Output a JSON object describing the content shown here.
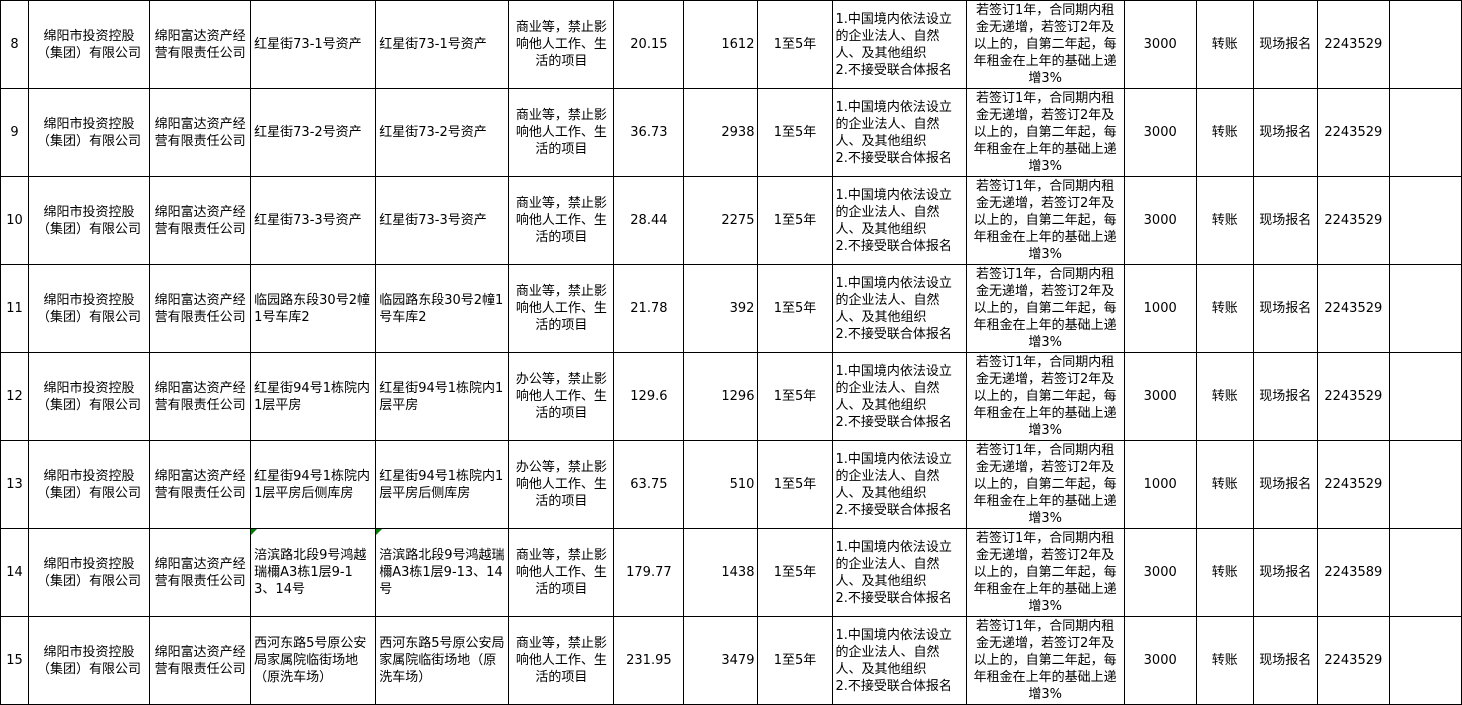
{
  "colors": {
    "border": "#000000",
    "background": "#ffffff",
    "text": "#000000",
    "error_flag_green": "#008000"
  },
  "icons": {
    "error_flag": "excel-green-corner-triangle"
  },
  "table": {
    "column_keys": [
      "num",
      "owner",
      "manager",
      "asset_name",
      "asset_name_2",
      "usage",
      "area",
      "monthly_rent",
      "term",
      "qualification",
      "escalation",
      "deposit",
      "payment",
      "registration",
      "phone",
      "extra"
    ],
    "rows": [
      {
        "num": "8",
        "owner": "绵阳市投资控股（集团）有限公司",
        "manager": "绵阳富达资产经营有限责任公司",
        "asset_name": "红星街73-1号资产",
        "asset_name_2": "红星街73-1号资产",
        "usage": "商业等，禁止影响他人工作、生活的项目",
        "area": "20.15",
        "monthly_rent": "1612",
        "term": "1至5年",
        "qualification": "1.中国境内依法设立的企业法人、自然人、及其他组织\n2.不接受联合体报名",
        "escalation": "若签订1年，合同期内租金无递增，若签订2年及以上的，自第二年起，每年租金在上年的基础上递增3%",
        "deposit": "3000",
        "payment": "转账",
        "registration": "现场报名",
        "phone": "2243529",
        "extra": "",
        "flags": []
      },
      {
        "num": "9",
        "owner": "绵阳市投资控股（集团）有限公司",
        "manager": "绵阳富达资产经营有限责任公司",
        "asset_name": "红星街73-2号资产",
        "asset_name_2": "红星街73-2号资产",
        "usage": "商业等，禁止影响他人工作、生活的项目",
        "area": "36.73",
        "monthly_rent": "2938",
        "term": "1至5年",
        "qualification": "1.中国境内依法设立的企业法人、自然人、及其他组织\n2.不接受联合体报名",
        "escalation": "若签订1年，合同期内租金无递增，若签订2年及以上的，自第二年起，每年租金在上年的基础上递增3%",
        "deposit": "3000",
        "payment": "转账",
        "registration": "现场报名",
        "phone": "2243529",
        "extra": "",
        "flags": []
      },
      {
        "num": "10",
        "owner": "绵阳市投资控股（集团）有限公司",
        "manager": "绵阳富达资产经营有限责任公司",
        "asset_name": "红星街73-3号资产",
        "asset_name_2": "红星街73-3号资产",
        "usage": "商业等，禁止影响他人工作、生活的项目",
        "area": "28.44",
        "monthly_rent": "2275",
        "term": "1至5年",
        "qualification": "1.中国境内依法设立的企业法人、自然人、及其他组织\n2.不接受联合体报名",
        "escalation": "若签订1年，合同期内租金无递增，若签订2年及以上的，自第二年起，每年租金在上年的基础上递增3%",
        "deposit": "3000",
        "payment": "转账",
        "registration": "现场报名",
        "phone": "2243529",
        "extra": "",
        "flags": []
      },
      {
        "num": "11",
        "owner": "绵阳市投资控股（集团）有限公司",
        "manager": "绵阳富达资产经营有限责任公司",
        "asset_name": "临园路东段30号2幢1号车库2",
        "asset_name_2": "临园路东段30号2幢1号车库2",
        "usage": "商业等，禁止影响他人工作、生活的项目",
        "area": "21.78",
        "monthly_rent": "392",
        "term": "1至5年",
        "qualification": "1.中国境内依法设立的企业法人、自然人、及其他组织\n2.不接受联合体报名",
        "escalation": "若签订1年，合同期内租金无递增，若签订2年及以上的，自第二年起，每年租金在上年的基础上递增3%",
        "deposit": "1000",
        "payment": "转账",
        "registration": "现场报名",
        "phone": "2243529",
        "extra": "",
        "flags": []
      },
      {
        "num": "12",
        "owner": "绵阳市投资控股（集团）有限公司",
        "manager": "绵阳富达资产经营有限责任公司",
        "asset_name": "红星街94号1栋院内1层平房",
        "asset_name_2": "红星街94号1栋院内1层平房",
        "usage": "办公等，禁止影响他人工作、生活的项目",
        "area": "129.6",
        "monthly_rent": "1296",
        "term": "1至5年",
        "qualification": "1.中国境内依法设立的企业法人、自然人、及其他组织\n2.不接受联合体报名",
        "escalation": "若签订1年，合同期内租金无递增，若签订2年及以上的，自第二年起，每年租金在上年的基础上递增3%",
        "deposit": "3000",
        "payment": "转账",
        "registration": "现场报名",
        "phone": "2243529",
        "extra": "",
        "flags": []
      },
      {
        "num": "13",
        "owner": "绵阳市投资控股（集团）有限公司",
        "manager": "绵阳富达资产经营有限责任公司",
        "asset_name": "红星街94号1栋院内1层平房后侧库房",
        "asset_name_2": "红星街94号1栋院内1层平房后侧库房",
        "usage": "办公等，禁止影响他人工作、生活的项目",
        "area": "63.75",
        "monthly_rent": "510",
        "term": "1至5年",
        "qualification": "1.中国境内依法设立的企业法人、自然人、及其他组织\n2.不接受联合体报名",
        "escalation": "若签订1年，合同期内租金无递增，若签订2年及以上的，自第二年起，每年租金在上年的基础上递增3%",
        "deposit": "1000",
        "payment": "转账",
        "registration": "现场报名",
        "phone": "2243529",
        "extra": "",
        "flags": []
      },
      {
        "num": "14",
        "owner": "绵阳市投资控股（集团）有限公司",
        "manager": "绵阳富达资产经营有限责任公司",
        "asset_name": "涪滨路北段9号鸿越瑞檷A3栋1层9-13、14号",
        "asset_name_2": "涪滨路北段9号鸿越瑞檷A3栋1层9-13、14号",
        "usage": "商业等，禁止影响他人工作、生活的项目",
        "area": "179.77",
        "monthly_rent": "1438",
        "term": "1至5年",
        "qualification": "1.中国境内依法设立的企业法人、自然人、及其他组织\n2.不接受联合体报名",
        "escalation": "若签订1年，合同期内租金无递增，若签订2年及以上的，自第二年起，每年租金在上年的基础上递增3%",
        "deposit": "3000",
        "payment": "转账",
        "registration": "现场报名",
        "phone": "2243589",
        "extra": "",
        "flags": [
          "asset_name",
          "asset_name_2"
        ]
      },
      {
        "num": "15",
        "owner": "绵阳市投资控股（集团）有限公司",
        "manager": "绵阳富达资产经营有限责任公司",
        "asset_name": "西河东路5号原公安局家属院临街场地（原洗车场）",
        "asset_name_2": "西河东路5号原公安局家属院临街场地（原洗车场）",
        "usage": "商业等，禁止影响他人工作、生活的项目",
        "area": "231.95",
        "monthly_rent": "3479",
        "term": "1至5年",
        "qualification": "1.中国境内依法设立的企业法人、自然人、及其他组织\n2.不接受联合体报名",
        "escalation": "若签订1年，合同期内租金无递增，若签订2年及以上的，自第二年起，每年租金在上年的基础上递增3%",
        "deposit": "3000",
        "payment": "转账",
        "registration": "现场报名",
        "phone": "2243529",
        "extra": "",
        "flags": []
      }
    ]
  }
}
